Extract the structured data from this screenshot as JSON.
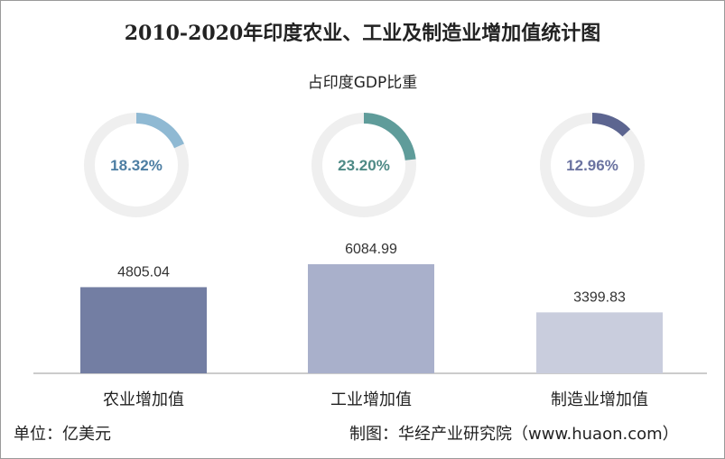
{
  "chart_data": {
    "type": "bar",
    "title": "2010-2020年印度农业、工业及制造业增加值统计图",
    "subtitle": "占印度GDP比重",
    "categories": [
      "农业增加值",
      "工业增加值",
      "制造业增加值"
    ],
    "values": [
      4805.04,
      6084.99,
      3399.83
    ],
    "value_labels": [
      "4805.04",
      "6084.99",
      "3399.83"
    ],
    "gdp_share_percent": [
      18.32,
      23.2,
      12.96
    ],
    "gdp_share_labels": [
      "18.32%",
      "23.20%",
      "12.96%"
    ],
    "bar_colors": [
      "#737ea3",
      "#a9b0cb",
      "#c9cddd"
    ],
    "donut_colors": [
      "#8fb9d3",
      "#5f9c9a",
      "#5c6590"
    ],
    "donut_text_colors": [
      "#4d7ea3",
      "#4e8a86",
      "#6a72a0"
    ],
    "ylim": [
      0,
      6500
    ],
    "grid": false
  },
  "footer": {
    "unit": "单位：亿美元",
    "source": "制图：华经产业研究院（www.huaon.com）"
  }
}
